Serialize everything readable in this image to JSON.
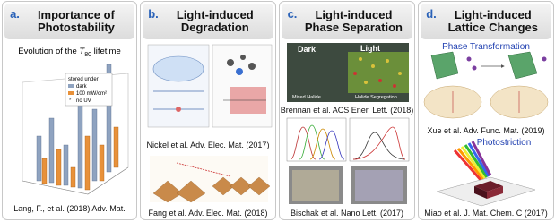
{
  "panels": [
    {
      "letter": "a.",
      "title": "Importance of Photostability",
      "subtitle": {
        "before": "Evolution of the ",
        "symbol": "T",
        "subscript": "80",
        "after": " lifetime"
      },
      "legend": {
        "title": "stored under",
        "items": [
          "dark",
          "100 mW/cm²",
          "no UV"
        ]
      },
      "citation": "Lang, F., et al. (2018) Adv. Mat."
    },
    {
      "letter": "b.",
      "title": "Light-induced Degradation",
      "citations": [
        "Nickel et al. Adv. Elec. Mat. (2017)",
        "Fang et al. Adv. Elec. Mat. (2018)"
      ]
    },
    {
      "letter": "c.",
      "title": "Light-induced Phase Separation",
      "inset": {
        "left": "Dark",
        "right": "Light",
        "left_caption": "Mixed Halide",
        "right_caption": "Halide Segregation"
      },
      "citations": [
        "Brennan et al. ACS Ener. Lett. (2018)",
        "Bischak et al. Nano Lett. (2017)"
      ]
    },
    {
      "letter": "d.",
      "title": "Light-induced Lattice Changes",
      "sections": [
        {
          "heading": "Phase Transformation",
          "citation": "Xue et al. Adv. Func. Mat. (2019)"
        },
        {
          "heading": "Photostriction",
          "citation": "Miao et al. J. Mat. Chem. C (2017)"
        }
      ]
    }
  ]
}
